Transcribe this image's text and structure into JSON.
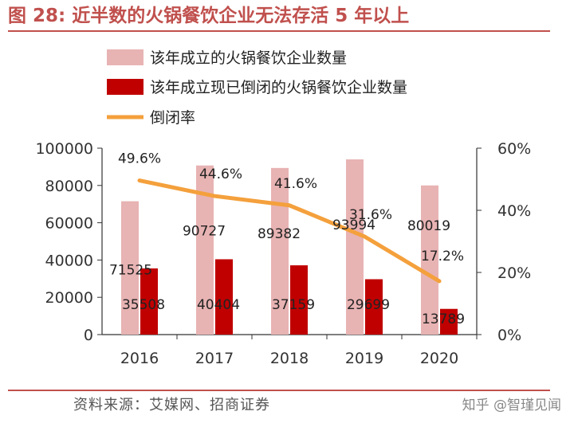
{
  "title": "图 28:  近半数的火锅餐饮企业无法存活 5 年以上",
  "source": "资料来源：艾媒网、招商证券",
  "watermark": "知乎 @智瑾见闻",
  "colors": {
    "established": "#e8b3b3",
    "closed": "#c00000",
    "rate": "#f4a03c",
    "accent": "#c0504d"
  },
  "chart_data": {
    "type": "bar",
    "categories": [
      "2016",
      "2017",
      "2018",
      "2019",
      "2020"
    ],
    "series": [
      {
        "name": "该年成立的火锅餐饮企业数量",
        "kind": "bar",
        "axis": "left",
        "values": [
          71525,
          90727,
          89382,
          93994,
          80019
        ],
        "labels": [
          "71525",
          "90727",
          "89382",
          "93994",
          "80019"
        ]
      },
      {
        "name": "该年成立现已倒闭的火锅餐饮企业数量",
        "kind": "bar",
        "axis": "left",
        "values": [
          35508,
          40404,
          37159,
          29699,
          13789
        ],
        "labels": [
          "35508",
          "40404",
          "37159",
          "29699",
          "13789"
        ]
      },
      {
        "name": "倒闭率",
        "kind": "line",
        "axis": "right",
        "values": [
          49.6,
          44.6,
          41.6,
          31.6,
          17.2
        ],
        "labels": [
          "49.6%",
          "44.6%",
          "41.6%",
          "31.6%",
          "17.2%"
        ]
      }
    ],
    "left_axis": {
      "ylim": [
        0,
        100000
      ],
      "ticks": [
        "0",
        "20000",
        "40000",
        "60000",
        "80000",
        "100000"
      ]
    },
    "right_axis": {
      "ylim": [
        0,
        60
      ],
      "ticks": [
        "0%",
        "20%",
        "40%",
        "60%"
      ]
    },
    "legend": "top",
    "grid": false
  }
}
